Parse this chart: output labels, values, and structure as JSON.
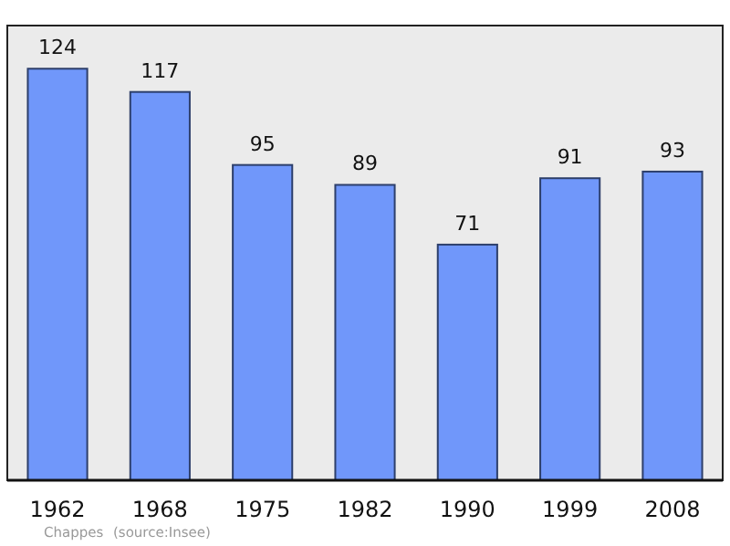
{
  "chart_data": {
    "type": "bar",
    "categories": [
      "1962",
      "1968",
      "1975",
      "1982",
      "1990",
      "1999",
      "2008"
    ],
    "values": [
      124,
      117,
      95,
      89,
      71,
      91,
      93
    ],
    "color": "#7097fa",
    "ylim": [
      0,
      137
    ],
    "data_labels": true,
    "annotations": [
      "Chappes",
      "(source:Insee)"
    ]
  }
}
